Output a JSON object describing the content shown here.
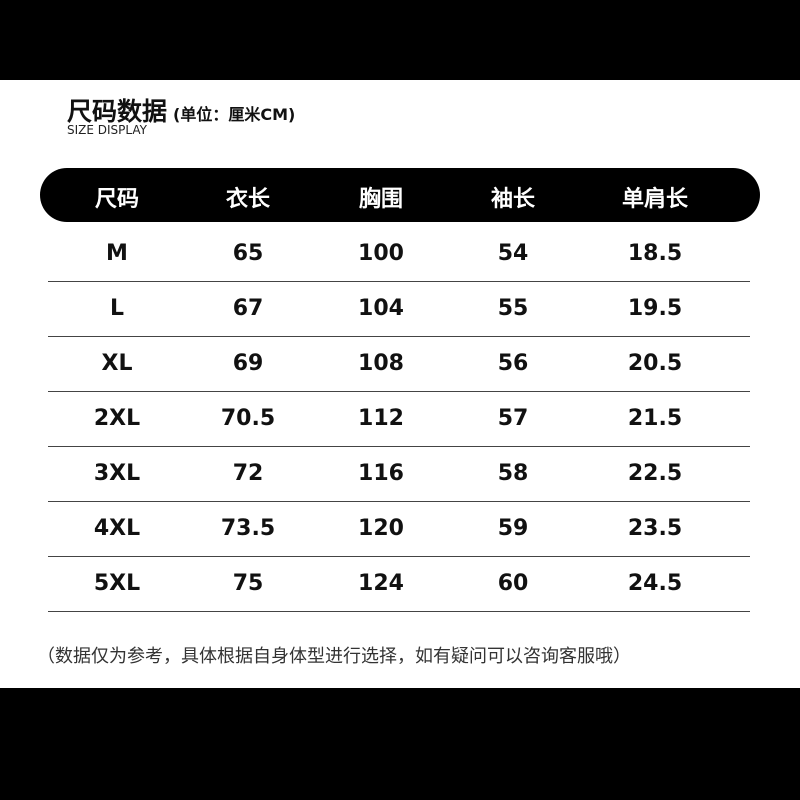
{
  "title": "尺码数据",
  "unit": "(单位：厘米CM)",
  "subtitle": "SIZE DISPLAY",
  "headers": [
    "尺码",
    "衣长",
    "胸围",
    "袖长",
    "单肩长"
  ],
  "rows": [
    [
      "M",
      "65",
      "100",
      "54",
      "18.5"
    ],
    [
      "L",
      "67",
      "104",
      "55",
      "19.5"
    ],
    [
      "XL",
      "69",
      "108",
      "56",
      "20.5"
    ],
    [
      "2XL",
      "70.5",
      "112",
      "57",
      "21.5"
    ],
    [
      "3XL",
      "72",
      "116",
      "58",
      "22.5"
    ],
    [
      "4XL",
      "73.5",
      "120",
      "59",
      "23.5"
    ],
    [
      "5XL",
      "75",
      "124",
      "60",
      "24.5"
    ]
  ],
  "note": "（数据仅为参考，具体根据自身体型进行选择，如有疑问可以咨询客服哦）"
}
